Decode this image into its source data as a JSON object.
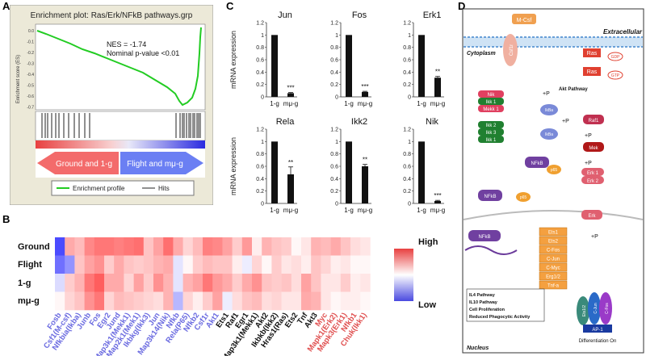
{
  "panels": {
    "A": "A",
    "B": "B",
    "C": "C",
    "D": "D"
  },
  "enrichment": {
    "title": "Enrichment plot: Ras/Erk/NFkB pathways.grp",
    "nes": "NES = -1.74",
    "pvalue": "Nominal p-value <0.01",
    "ylabel": "Enrichment score (ES)",
    "yticks": [
      "0.0",
      "-0.1",
      "-0.2",
      "-0.3",
      "-0.4",
      "-0.5",
      "-0.6",
      "-0.7"
    ],
    "left_arrow": "Ground and 1-g",
    "right_arrow": "Flight and mμ-g",
    "legend_profile": "Enrichment profile",
    "legend_hits": "Hits",
    "colors": {
      "profile": "#22cc22",
      "left_arrow": "#f36b6b",
      "right_arrow": "#6b7ff3",
      "panel_bg": "#ece9d8"
    }
  },
  "heatmap": {
    "rows": [
      "Ground",
      "Flight",
      "1-g",
      "mμ-g"
    ],
    "legend_high": "High",
    "legend_low": "Low",
    "genes": [
      {
        "name": "Fosb",
        "color": "#6a6ae0"
      },
      {
        "name": "Csf1(M-csf)",
        "color": "#6a6ae0"
      },
      {
        "name": "Nfkbia(Ikba)",
        "color": "#6a6ae0"
      },
      {
        "name": "Junb",
        "color": "#6a6ae0"
      },
      {
        "name": "Fos",
        "color": "#6a6ae0"
      },
      {
        "name": "Egr2",
        "color": "#6a6ae0"
      },
      {
        "name": "Jund",
        "color": "#6a6ae0"
      },
      {
        "name": "Map3k1(Mekk1)",
        "color": "#6a6ae0"
      },
      {
        "name": "Map2k1(Mek1)",
        "color": "#6a6ae0"
      },
      {
        "name": "Ikbkg(Ikk3)",
        "color": "#6a6ae0"
      },
      {
        "name": "Jun",
        "color": "#6a6ae0"
      },
      {
        "name": "Map3k14(Nik)",
        "color": "#6a6ae0"
      },
      {
        "name": "Nfkb",
        "color": "#6a6ae0"
      },
      {
        "name": "Rela(P65)",
        "color": "#6a6ae0"
      },
      {
        "name": "Nfkb2",
        "color": "#6a6ae0"
      },
      {
        "name": "Csf1r",
        "color": "#6a6ae0"
      },
      {
        "name": "Akt1",
        "color": "#6a6ae0"
      },
      {
        "name": "Ets1",
        "color": "#111111"
      },
      {
        "name": "Raf1",
        "color": "#111111"
      },
      {
        "name": "Egr1",
        "color": "#111111"
      },
      {
        "name": "Map3k1(Mekk1)",
        "color": "#111111"
      },
      {
        "name": "Akt2",
        "color": "#111111"
      },
      {
        "name": "Ikbkb(Ikk2)",
        "color": "#111111"
      },
      {
        "name": "Hras1(Ras)",
        "color": "#111111"
      },
      {
        "name": "Ets2",
        "color": "#111111"
      },
      {
        "name": "Tnf",
        "color": "#111111"
      },
      {
        "name": "Akt3",
        "color": "#111111"
      },
      {
        "name": "Myc",
        "color": "#e05050"
      },
      {
        "name": "Mapk1(Erk2)",
        "color": "#e05050"
      },
      {
        "name": "Mapk3(Erk1)",
        "color": "#e05050"
      },
      {
        "name": "Nfkb1",
        "color": "#e05050"
      },
      {
        "name": "Chuk(Ikk1)",
        "color": "#e05050"
      }
    ],
    "values": [
      [
        -2,
        1.0,
        0.8,
        1.4,
        1.6,
        1.6,
        1.5,
        1.6,
        1.7,
        0.7,
        1.1,
        1.7,
        1.0,
        0.5,
        0.8,
        1.5,
        1.4,
        1.1,
        0.6,
        1.2,
        0.2,
        0.9,
        0.7,
        0.6,
        0.1,
        0.3,
        0.9,
        0.8,
        1.0,
        0.7,
        0.4,
        0.3
      ],
      [
        -1.6,
        -1.2,
        0.7,
        1.1,
        1.3,
        0.6,
        1.0,
        0.7,
        0.6,
        0.7,
        0.9,
        1.0,
        -0.3,
        0.1,
        0.6,
        0.8,
        0.7,
        0.7,
        0.2,
        -0.2,
        0.5,
        0.1,
        0.6,
        0.3,
        0.4,
        0.2,
        0.7,
        0.5,
        0.2,
        0.3,
        0.1,
        0.1
      ],
      [
        -0.4,
        0.6,
        0.9,
        1.6,
        1.9,
        1.0,
        1.0,
        0.5,
        1.1,
        0.6,
        1.3,
        0.9,
        -0.3,
        0.9,
        1.1,
        1.6,
        1.2,
        1.0,
        0.6,
        1.0,
        1.3,
        0.7,
        0.6,
        0.7,
        0.4,
        1.1,
        0.7,
        0.3,
        0.3,
        0.6,
        0.2,
        0.3
      ],
      [
        0.1,
        0.5,
        0.7,
        1.3,
        1.6,
        0.5,
        0.8,
        0.7,
        0.6,
        0.5,
        0.4,
        0.9,
        -0.8,
        0.5,
        0.2,
        0.6,
        1.1,
        -0.2,
        0.4,
        0.7,
        0.8,
        0.4,
        0.5,
        0.3,
        0.3,
        1.0,
        0.9,
        0.3,
        0.1,
        0.2,
        0.2,
        0.1
      ]
    ]
  },
  "bars": {
    "ylabel": "mRNA expression",
    "yticks": [
      "0",
      "0.2",
      "0.4",
      "0.6",
      "0.8",
      "1",
      "1.2"
    ],
    "categories": [
      "1-g",
      "mμ-g"
    ]
  },
  "chart_data": [
    {
      "type": "bar",
      "title": "Jun",
      "categories": [
        "1-g",
        "mμ-g"
      ],
      "values": [
        1.0,
        0.06
      ],
      "errors": [
        0,
        0.01
      ],
      "sig": "***",
      "ylabel": "mRNA expression",
      "ylim": [
        0,
        1.2
      ]
    },
    {
      "type": "bar",
      "title": "Fos",
      "categories": [
        "1-g",
        "mμ-g"
      ],
      "values": [
        1.0,
        0.08
      ],
      "errors": [
        0,
        0.01
      ],
      "sig": "***",
      "ylabel": "",
      "ylim": [
        0,
        1.2
      ]
    },
    {
      "type": "bar",
      "title": "Erk1",
      "categories": [
        "1-g",
        "mμ-g"
      ],
      "values": [
        1.0,
        0.31
      ],
      "errors": [
        0,
        0.02
      ],
      "sig": "**",
      "ylabel": "",
      "ylim": [
        0,
        1.2
      ]
    },
    {
      "type": "bar",
      "title": "Rela",
      "categories": [
        "1-g",
        "mμ-g"
      ],
      "values": [
        1.0,
        0.47
      ],
      "errors": [
        0,
        0.12
      ],
      "sig": "**",
      "ylabel": "mRNA expression",
      "ylim": [
        0,
        1.2
      ]
    },
    {
      "type": "bar",
      "title": "Ikk2",
      "categories": [
        "1-g",
        "mμ-g"
      ],
      "values": [
        1.0,
        0.6
      ],
      "errors": [
        0,
        0.03
      ],
      "sig": "**",
      "ylabel": "",
      "ylim": [
        0,
        1.2
      ]
    },
    {
      "type": "bar",
      "title": "Nik",
      "categories": [
        "1-g",
        "mμ-g"
      ],
      "values": [
        1.0,
        0.04
      ],
      "errors": [
        0,
        0.01
      ],
      "sig": "***",
      "ylabel": "",
      "ylim": [
        0,
        1.2
      ]
    }
  ],
  "pathway": {
    "extracellular": "Extracellular",
    "cytoplasm": "Cytoplasm",
    "nucleus": "Nucleus",
    "mcsf": "M-Csf",
    "csf1r": "Csf1r",
    "ras": "Ras",
    "ras2": "Ras",
    "gdp": "GDP",
    "gtp": "GTP",
    "akt": "Akt\nPathway",
    "nik": "Nik",
    "ikk1": "Ikk 1",
    "mekk1": "Mekk 1",
    "ikk2": "Ikk 2",
    "ikk3": "Ikk 3",
    "ikk1b": "Ikk 1",
    "ikba": "IkBa",
    "ikba2": "IkBa",
    "nfkb": "NFkB",
    "nfkb2": "NFkB",
    "nfkb3": "NFkB",
    "p65": "p65",
    "p65b": "p65",
    "raf1": "Raf1",
    "mek": "Mek",
    "erk1": "Erk 1",
    "erk2": "Erk 2",
    "erk": "Erk",
    "plusP": "+P",
    "targets": [
      "Ets1",
      "Ets2",
      "C-Fos",
      "C-Jun",
      "C-Myc",
      "Erg1/2",
      "Tnf-a"
    ],
    "outcomes": [
      "IL4 Pathway",
      "IL10 Pathway",
      "Cell Proliferation",
      "Reduced Phagocytic Activity"
    ],
    "ap1": "AP-1",
    "ets12": "Ets1/2",
    "cjun": "C-Jun",
    "cfos": "C-Fos",
    "diff": "Differentiation On"
  }
}
